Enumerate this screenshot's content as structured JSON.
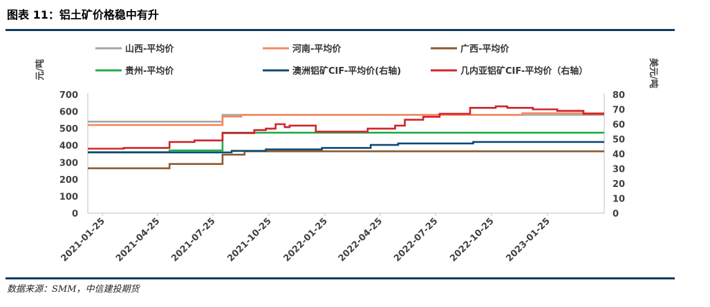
{
  "header": {
    "title": "图表 11：铝土矿价格稳中有升"
  },
  "footer": {
    "source": "数据来源：SMM，中信建投期货"
  },
  "chart_data": {
    "type": "line",
    "ylabel_left": "元/吨",
    "ylabel_right": "美元/吨",
    "ylim_left": [
      0,
      700
    ],
    "ylim_right": [
      0,
      80
    ],
    "yticks_left": [
      0,
      100,
      200,
      300,
      400,
      500,
      600,
      700
    ],
    "yticks_right": [
      0,
      10,
      20,
      30,
      40,
      50,
      60,
      70,
      80
    ],
    "xlim": [
      "2021-01-01",
      "2023-04-28"
    ],
    "xticks": [
      "2021-01-25",
      "2021-04-25",
      "2021-07-25",
      "2021-10-25",
      "2022-01-25",
      "2022-04-25",
      "2022-07-25",
      "2022-10-25",
      "2023-01-25"
    ],
    "grid": false,
    "legend_position": "top",
    "series": [
      {
        "name": "山西-平均价",
        "axis": "left",
        "color": "#a6a6a6",
        "points": [
          [
            "2021-01-01",
            540
          ],
          [
            "2021-08-10",
            540
          ],
          [
            "2021-08-10",
            580
          ],
          [
            "2023-04-28",
            580
          ]
        ]
      },
      {
        "name": "河南-平均价",
        "axis": "left",
        "color": "#f4885a",
        "points": [
          [
            "2021-01-01",
            520
          ],
          [
            "2021-08-10",
            520
          ],
          [
            "2021-08-10",
            570
          ],
          [
            "2021-09-10",
            570
          ],
          [
            "2021-09-10",
            580
          ],
          [
            "2022-12-15",
            580
          ],
          [
            "2022-12-15",
            590
          ],
          [
            "2023-04-28",
            590
          ]
        ]
      },
      {
        "name": "广西-平均价",
        "axis": "left",
        "color": "#8c5a2e",
        "points": [
          [
            "2021-01-01",
            265
          ],
          [
            "2021-05-15",
            265
          ],
          [
            "2021-05-15",
            290
          ],
          [
            "2021-08-10",
            290
          ],
          [
            "2021-08-10",
            345
          ],
          [
            "2021-09-15",
            345
          ],
          [
            "2021-09-15",
            365
          ],
          [
            "2023-04-28",
            365
          ]
        ]
      },
      {
        "name": "贵州-平均价",
        "axis": "left",
        "color": "#1fad4b",
        "points": [
          [
            "2021-01-01",
            360
          ],
          [
            "2021-05-15",
            360
          ],
          [
            "2021-05-15",
            370
          ],
          [
            "2021-08-10",
            370
          ],
          [
            "2021-08-10",
            475
          ],
          [
            "2023-04-28",
            475
          ]
        ]
      },
      {
        "name": "澳洲铝矿CIF-平均价(右轴)",
        "axis": "right",
        "color": "#0c4a73",
        "points": [
          [
            "2021-01-01",
            41
          ],
          [
            "2021-08-25",
            41
          ],
          [
            "2021-08-25",
            42
          ],
          [
            "2021-10-20",
            42
          ],
          [
            "2021-10-20",
            43
          ],
          [
            "2022-01-20",
            43
          ],
          [
            "2022-01-20",
            44
          ],
          [
            "2022-04-10",
            44
          ],
          [
            "2022-04-10",
            46
          ],
          [
            "2022-05-25",
            46
          ],
          [
            "2022-05-25",
            47
          ],
          [
            "2022-09-25",
            47
          ],
          [
            "2022-09-25",
            48
          ],
          [
            "2023-04-28",
            48
          ]
        ]
      },
      {
        "name": "几内亚铝矿CIF-平均价（右轴）",
        "axis": "right",
        "color": "#d1232a",
        "points": [
          [
            "2021-01-01",
            43.5
          ],
          [
            "2021-03-01",
            43.5
          ],
          [
            "2021-03-01",
            44
          ],
          [
            "2021-05-15",
            44
          ],
          [
            "2021-05-15",
            48
          ],
          [
            "2021-06-25",
            48
          ],
          [
            "2021-06-25",
            49
          ],
          [
            "2021-08-10",
            49
          ],
          [
            "2021-08-10",
            54
          ],
          [
            "2021-10-01",
            54
          ],
          [
            "2021-10-01",
            56
          ],
          [
            "2021-10-20",
            56
          ],
          [
            "2021-10-20",
            57
          ],
          [
            "2021-11-05",
            57
          ],
          [
            "2021-11-05",
            60
          ],
          [
            "2021-11-20",
            60
          ],
          [
            "2021-11-20",
            58
          ],
          [
            "2021-11-28",
            58
          ],
          [
            "2021-11-28",
            59
          ],
          [
            "2022-01-10",
            59
          ],
          [
            "2022-01-10",
            55
          ],
          [
            "2022-04-05",
            55
          ],
          [
            "2022-04-05",
            57
          ],
          [
            "2022-05-20",
            57
          ],
          [
            "2022-05-20",
            59
          ],
          [
            "2022-06-05",
            59
          ],
          [
            "2022-06-05",
            63
          ],
          [
            "2022-07-05",
            63
          ],
          [
            "2022-07-05",
            65
          ],
          [
            "2022-08-01",
            65
          ],
          [
            "2022-08-01",
            67
          ],
          [
            "2022-09-20",
            67
          ],
          [
            "2022-09-20",
            71
          ],
          [
            "2022-11-01",
            71
          ],
          [
            "2022-11-01",
            72
          ],
          [
            "2022-11-20",
            72
          ],
          [
            "2022-11-20",
            71
          ],
          [
            "2023-01-01",
            71
          ],
          [
            "2023-01-01",
            70
          ],
          [
            "2023-02-10",
            70
          ],
          [
            "2023-02-10",
            69
          ],
          [
            "2023-03-25",
            69
          ],
          [
            "2023-03-25",
            67
          ],
          [
            "2023-04-28",
            67
          ]
        ]
      }
    ]
  }
}
